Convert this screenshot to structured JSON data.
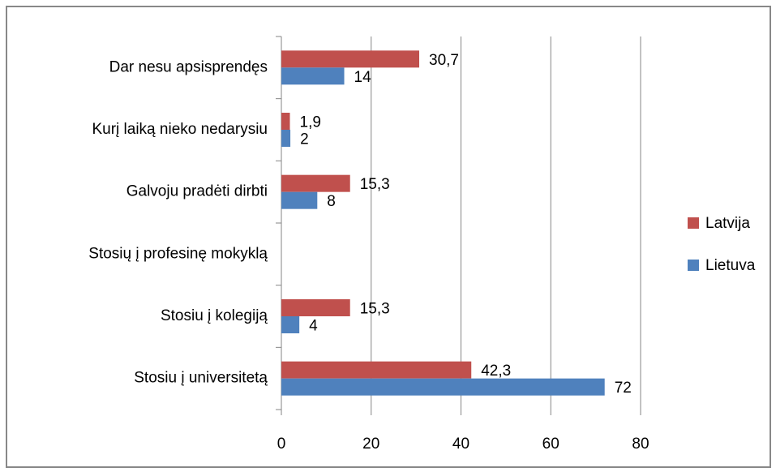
{
  "chart_data": {
    "type": "hbar",
    "categories": [
      "Dar nesu apsisprendęs",
      "Kurį laiką nieko nedarysiu",
      "Galvoju pradėti dirbti",
      "Stosių į profesinę mokyklą",
      "Stosiu į kolegiją",
      "Stosiu į universitetą"
    ],
    "series": [
      {
        "name": "Latvija",
        "color": "#c0504d",
        "values": [
          30.7,
          1.9,
          15.3,
          null,
          15.3,
          42.3
        ],
        "value_labels": [
          "30,7",
          "1,9",
          "15,3",
          null,
          "15,3",
          "42,3"
        ]
      },
      {
        "name": "Lietuva",
        "color": "#4f81bd",
        "values": [
          14,
          2,
          8,
          null,
          4,
          72
        ]
      }
    ],
    "xlim": [
      0,
      80
    ],
    "xticks": [
      0,
      20,
      40,
      60,
      80
    ],
    "grid": true,
    "legend": "right"
  }
}
